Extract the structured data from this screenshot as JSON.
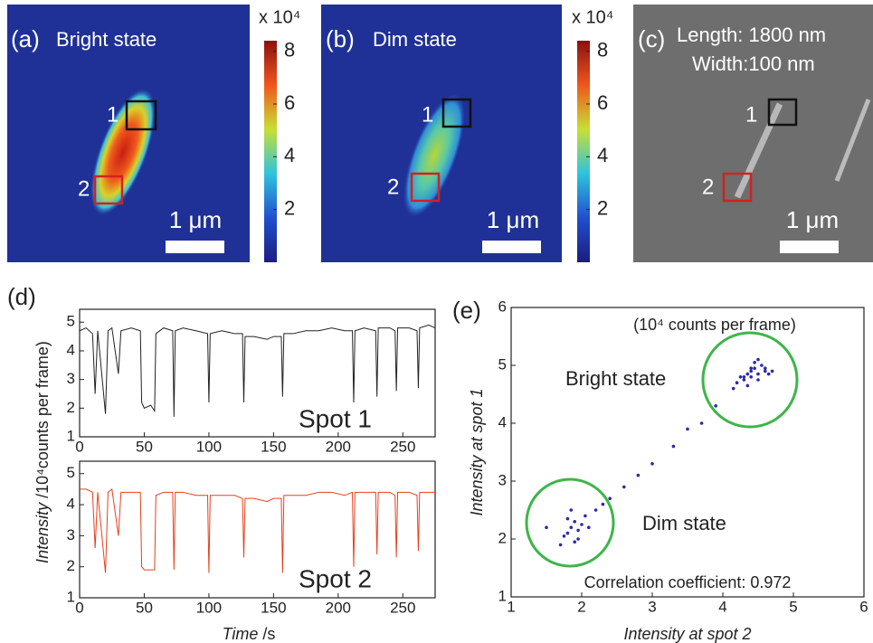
{
  "images": [
    {
      "label": "(a)",
      "title": "Bright state",
      "spots": [
        "1",
        "2"
      ],
      "scalebar": "1 μm",
      "colorbar": {
        "label": "x 10⁴",
        "lim": [
          0,
          8.4
        ],
        "ticks": [
          2,
          4,
          6,
          8
        ]
      }
    },
    {
      "label": "(b)",
      "title": "Dim state",
      "spots": [
        "1",
        "2"
      ],
      "scalebar": "1 μm",
      "colorbar": {
        "label": "x 10⁴",
        "lim": [
          0,
          8.4
        ],
        "ticks": [
          2,
          4,
          6,
          8
        ]
      }
    },
    {
      "label": "(c)",
      "title_lines": [
        "Length: 1800 nm",
        "Width:100 nm"
      ],
      "spots": [
        "1",
        "2"
      ],
      "scalebar": "1 μm"
    }
  ],
  "chart_data": [
    {
      "type": "line",
      "panel_label": "(d)",
      "annotation": "Spot 1",
      "ylabel_italic": "Intensity",
      "ylabel_rest": " /10⁴counts per frame)",
      "x": [
        0,
        5,
        10,
        12,
        14,
        20,
        22,
        25,
        30,
        32,
        40,
        47,
        48,
        50,
        55,
        58,
        59,
        65,
        72,
        73,
        74,
        80,
        90,
        99,
        100,
        101,
        110,
        120,
        126,
        127,
        128,
        135,
        145,
        150,
        156,
        157,
        158,
        165,
        175,
        185,
        195,
        205,
        211,
        212,
        213,
        220,
        229,
        230,
        231,
        240,
        244,
        245,
        246,
        255,
        261,
        262,
        263,
        270,
        275
      ],
      "series": [
        {
          "color": "#222222",
          "values": [
            4.7,
            4.8,
            4.6,
            2.5,
            4.7,
            1.8,
            4.7,
            4.8,
            3.2,
            4.7,
            4.8,
            4.7,
            2.2,
            2.0,
            2.1,
            1.9,
            4.6,
            4.8,
            4.7,
            1.7,
            4.7,
            4.8,
            4.7,
            4.6,
            2.2,
            4.6,
            4.7,
            4.6,
            4.6,
            2.2,
            4.5,
            4.5,
            4.4,
            4.5,
            4.5,
            2.4,
            4.6,
            4.6,
            4.7,
            4.7,
            4.8,
            4.7,
            4.7,
            2.2,
            4.7,
            4.8,
            4.7,
            2.4,
            4.8,
            4.8,
            4.7,
            2.6,
            4.8,
            4.8,
            4.7,
            2.7,
            4.8,
            4.9,
            4.8
          ]
        }
      ],
      "xlim": [
        0,
        275
      ],
      "xticks": [
        0,
        50,
        100,
        150,
        200,
        250
      ],
      "ylim": [
        1,
        5.45
      ],
      "yticks": [
        1,
        2,
        3,
        4,
        5
      ]
    },
    {
      "type": "line",
      "annotation": "Spot 2",
      "xlabel_italic": "Time",
      "xlabel_rest": " /s",
      "x": [
        0,
        5,
        10,
        12,
        14,
        20,
        22,
        25,
        30,
        32,
        40,
        47,
        48,
        50,
        55,
        58,
        59,
        65,
        72,
        73,
        74,
        80,
        90,
        99,
        100,
        101,
        110,
        120,
        126,
        127,
        128,
        135,
        145,
        150,
        156,
        157,
        158,
        165,
        175,
        185,
        195,
        205,
        211,
        212,
        213,
        220,
        229,
        230,
        231,
        240,
        244,
        245,
        246,
        255,
        261,
        262,
        263,
        270,
        275
      ],
      "series": [
        {
          "color": "#e8401c",
          "values": [
            4.5,
            4.5,
            4.4,
            2.6,
            4.4,
            1.8,
            4.4,
            4.5,
            3.0,
            4.4,
            4.4,
            4.4,
            2.0,
            1.9,
            1.9,
            1.9,
            4.3,
            4.4,
            4.4,
            1.9,
            4.4,
            4.4,
            4.3,
            4.3,
            1.8,
            4.3,
            4.3,
            4.3,
            4.2,
            2.3,
            4.2,
            4.2,
            4.1,
            4.2,
            4.2,
            1.8,
            4.3,
            4.3,
            4.3,
            4.4,
            4.4,
            4.3,
            4.4,
            2.0,
            4.4,
            4.4,
            4.4,
            2.4,
            4.4,
            4.4,
            4.3,
            2.3,
            4.4,
            4.4,
            4.3,
            2.5,
            4.4,
            4.4,
            4.4
          ]
        }
      ],
      "xlim": [
        0,
        275
      ],
      "xticks": [
        0,
        50,
        100,
        150,
        200,
        250
      ],
      "ylim": [
        1,
        5.4
      ],
      "yticks": [
        1,
        2,
        3,
        4,
        5
      ]
    },
    {
      "type": "scatter",
      "panel_label": "(e)",
      "subtitle": "(10⁴ counts per frame)",
      "bright_label": "Bright state",
      "dim_label": "Dim state",
      "note": "Correlation coefficient: 0.972",
      "xlabel": "Intensity at spot 2",
      "ylabel": "Intensity at spot 1",
      "color": "#2b2ba6",
      "x": [
        4.2,
        4.3,
        4.35,
        4.4,
        4.45,
        4.5,
        4.55,
        4.6,
        4.3,
        4.4,
        4.5,
        4.25,
        4.45,
        4.6,
        4.35,
        4.5,
        4.65,
        4.4,
        4.7,
        4.15,
        3.9,
        3.7,
        3.5,
        3.3,
        3.0,
        2.8,
        2.6,
        2.4,
        2.2,
        1.8,
        1.85,
        1.9,
        1.95,
        2.0,
        1.75,
        1.9,
        2.05,
        1.8,
        2.1,
        1.95,
        1.7,
        1.85,
        1.5,
        2.3
      ],
      "y": [
        4.7,
        4.8,
        4.85,
        4.9,
        4.95,
        4.85,
        5.0,
        4.9,
        4.75,
        4.8,
        4.75,
        4.8,
        5.05,
        4.95,
        4.65,
        5.1,
        4.85,
        4.95,
        4.9,
        4.6,
        4.3,
        4.0,
        3.9,
        3.6,
        3.3,
        3.1,
        2.9,
        2.7,
        2.5,
        2.1,
        2.2,
        2.3,
        2.15,
        2.25,
        2.05,
        1.95,
        2.4,
        2.35,
        2.2,
        2.0,
        1.9,
        2.5,
        2.2,
        2.6
      ],
      "xlim": [
        1,
        6
      ],
      "xticks": [
        1,
        2,
        3,
        4,
        5,
        6
      ],
      "ylim": [
        1,
        6
      ],
      "yticks": [
        1,
        2,
        3,
        4,
        5,
        6
      ]
    }
  ]
}
